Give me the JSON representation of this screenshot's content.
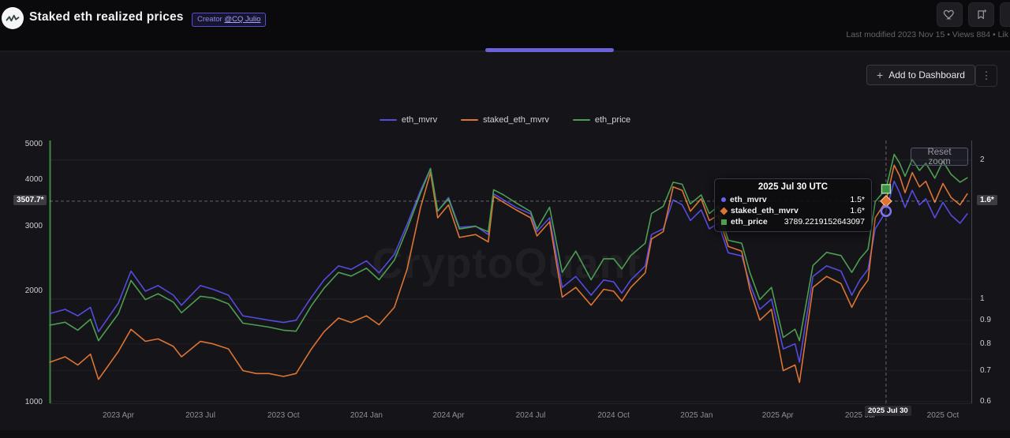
{
  "header": {
    "title": "Staked eth realized prices",
    "creator_badge": {
      "prefix": "Creator",
      "handle": "@CQ Julio"
    },
    "meta": "Last modified 2023 Nov 15 • Views 884 • Lik",
    "colors": {
      "badge_border": "#564fcf",
      "badge_text": "#8d88e8"
    }
  },
  "toolbar": {
    "add_to_dashboard": "Add to Dashboard",
    "kebab": "⋮",
    "plus": "+"
  },
  "legend": [
    {
      "label": "eth_mvrv",
      "color": "#554bdf"
    },
    {
      "label": "staked_eth_mvrv",
      "color": "#dd7433"
    },
    {
      "label": "eth_price",
      "color": "#4d9e51"
    }
  ],
  "watermark": "CryptoQuant",
  "reset_zoom": "Reset zoom",
  "tooltip": {
    "title": "2025 Jul 30 UTC",
    "rows": [
      {
        "label": "eth_mvrv",
        "value": "1.5*",
        "color": "#6a61f0",
        "shape": "circle"
      },
      {
        "label": "staked_eth_mvrv",
        "value": "1.6*",
        "color": "#dd7433",
        "shape": "diamond"
      },
      {
        "label": "eth_price",
        "value": "3789.2219152643097",
        "color": "#4d9e51",
        "shape": "square"
      }
    ]
  },
  "crosshair": {
    "x_label": "2025 Jul 30",
    "left_label": "3507.7*",
    "right_label": "1.6*"
  },
  "axes": {
    "left_ticks": [
      {
        "label": "5000",
        "value": 5000
      },
      {
        "label": "4000",
        "value": 4000
      },
      {
        "label": "3000",
        "value": 3000
      },
      {
        "label": "2000",
        "value": 2000
      },
      {
        "label": "1000",
        "value": 1000
      }
    ],
    "right_ticks": [
      {
        "label": "2",
        "value": 2
      },
      {
        "label": "1",
        "value": 1
      },
      {
        "label": "0.9",
        "value": 0.9
      },
      {
        "label": "0.8",
        "value": 0.8
      },
      {
        "label": "0.7",
        "value": 0.7
      },
      {
        "label": "0.6",
        "value": 0.6
      }
    ],
    "x_ticks": [
      {
        "label": "2023 Apr",
        "date": "2023-04-01"
      },
      {
        "label": "2023 Jul",
        "date": "2023-07-01"
      },
      {
        "label": "2023 Oct",
        "date": "2023-10-01"
      },
      {
        "label": "2024 Jan",
        "date": "2024-01-01"
      },
      {
        "label": "2024 Apr",
        "date": "2024-04-01"
      },
      {
        "label": "2024 Jul",
        "date": "2024-07-01"
      },
      {
        "label": "2024 Oct",
        "date": "2024-10-01"
      },
      {
        "label": "2025 Jan",
        "date": "2025-01-01"
      },
      {
        "label": "2025 Apr",
        "date": "2025-04-01"
      },
      {
        "label": "2025 Jul",
        "date": "2025-07-01"
      },
      {
        "label": "2025 Oct",
        "date": "2025-10-01"
      }
    ]
  },
  "chart_data": {
    "type": "line",
    "title": "Staked eth realized prices",
    "left_axis": {
      "scale": "log",
      "units": "USD",
      "series": "eth_price",
      "range": [
        1000,
        5000
      ]
    },
    "right_axis": {
      "scale": "log",
      "units": "ratio",
      "series": "eth_mvrv / staked_eth_mvrv",
      "range": [
        0.6,
        2.2
      ]
    },
    "legend_position": "top-center",
    "dates": [
      "2023-01-15",
      "2023-02-01",
      "2023-02-15",
      "2023-03-01",
      "2023-03-10",
      "2023-04-01",
      "2023-04-15",
      "2023-05-01",
      "2023-05-15",
      "2023-06-01",
      "2023-06-10",
      "2023-07-01",
      "2023-07-15",
      "2023-08-01",
      "2023-08-17",
      "2023-09-01",
      "2023-09-15",
      "2023-10-01",
      "2023-10-15",
      "2023-11-01",
      "2023-11-15",
      "2023-12-01",
      "2023-12-15",
      "2024-01-01",
      "2024-01-15",
      "2024-02-01",
      "2024-02-15",
      "2024-03-01",
      "2024-03-12",
      "2024-03-20",
      "2024-04-01",
      "2024-04-13",
      "2024-05-01",
      "2024-05-15",
      "2024-05-21",
      "2024-06-01",
      "2024-06-15",
      "2024-07-01",
      "2024-07-08",
      "2024-07-22",
      "2024-08-05",
      "2024-08-20",
      "2024-09-06",
      "2024-09-20",
      "2024-10-01",
      "2024-10-10",
      "2024-10-20",
      "2024-11-05",
      "2024-11-12",
      "2024-11-25",
      "2024-12-06",
      "2024-12-16",
      "2024-12-25",
      "2025-01-06",
      "2025-01-15",
      "2025-01-25",
      "2025-02-05",
      "2025-02-20",
      "2025-03-01",
      "2025-03-12",
      "2025-03-25",
      "2025-04-07",
      "2025-04-20",
      "2025-04-25",
      "2025-05-10",
      "2025-05-25",
      "2025-06-10",
      "2025-06-22",
      "2025-07-01",
      "2025-07-10",
      "2025-07-18",
      "2025-07-30",
      "2025-08-08",
      "2025-08-14",
      "2025-08-20",
      "2025-08-28",
      "2025-09-05",
      "2025-09-12",
      "2025-09-22",
      "2025-10-01",
      "2025-10-10",
      "2025-10-20",
      "2025-10-28"
    ],
    "series": [
      {
        "name": "eth_mvrv",
        "axis": "right",
        "color": "#554bdf",
        "values": [
          0.93,
          0.95,
          0.92,
          0.96,
          0.85,
          0.98,
          1.15,
          1.04,
          1.07,
          1.02,
          0.97,
          1.07,
          1.05,
          1.02,
          0.92,
          0.91,
          0.9,
          0.89,
          0.9,
          1.01,
          1.1,
          1.18,
          1.16,
          1.21,
          1.14,
          1.25,
          1.45,
          1.72,
          1.92,
          1.55,
          1.66,
          1.43,
          1.44,
          1.38,
          1.69,
          1.64,
          1.58,
          1.53,
          1.4,
          1.5,
          1.06,
          1.12,
          1.02,
          1.1,
          1.09,
          1.03,
          1.1,
          1.18,
          1.38,
          1.42,
          1.64,
          1.6,
          1.48,
          1.56,
          1.42,
          1.46,
          1.26,
          1.24,
          1.08,
          0.95,
          1.0,
          0.78,
          0.8,
          0.73,
          1.12,
          1.18,
          1.15,
          1.02,
          1.1,
          1.16,
          1.42,
          1.55,
          1.8,
          1.7,
          1.58,
          1.72,
          1.6,
          1.65,
          1.5,
          1.62,
          1.52,
          1.46,
          1.53
        ]
      },
      {
        "name": "staked_eth_mvrv",
        "axis": "right",
        "color": "#dd7433",
        "values": [
          0.73,
          0.75,
          0.72,
          0.76,
          0.67,
          0.77,
          0.86,
          0.81,
          0.82,
          0.79,
          0.75,
          0.81,
          0.8,
          0.78,
          0.7,
          0.69,
          0.69,
          0.68,
          0.69,
          0.78,
          0.85,
          0.91,
          0.89,
          0.92,
          0.88,
          0.96,
          1.16,
          1.58,
          1.88,
          1.5,
          1.6,
          1.36,
          1.38,
          1.33,
          1.67,
          1.62,
          1.56,
          1.5,
          1.37,
          1.47,
          1.01,
          1.06,
          0.97,
          1.05,
          1.04,
          0.99,
          1.06,
          1.14,
          1.35,
          1.4,
          1.75,
          1.72,
          1.55,
          1.65,
          1.48,
          1.52,
          1.3,
          1.27,
          1.05,
          0.9,
          0.95,
          0.7,
          0.72,
          0.66,
          1.06,
          1.12,
          1.08,
          0.96,
          1.04,
          1.1,
          1.5,
          1.63,
          1.95,
          1.85,
          1.7,
          1.88,
          1.75,
          1.8,
          1.62,
          1.78,
          1.66,
          1.6,
          1.69
        ]
      },
      {
        "name": "eth_price",
        "axis": "left",
        "color": "#4d9e51",
        "values": [
          1620,
          1650,
          1570,
          1680,
          1470,
          1740,
          2140,
          1900,
          1970,
          1870,
          1750,
          1940,
          1920,
          1850,
          1640,
          1620,
          1600,
          1570,
          1560,
          1830,
          2040,
          2250,
          2200,
          2310,
          2150,
          2430,
          2950,
          3690,
          4300,
          3300,
          3560,
          2950,
          3000,
          2900,
          3770,
          3650,
          3470,
          3290,
          2950,
          3380,
          2250,
          2570,
          2150,
          2450,
          2450,
          2300,
          2500,
          2700,
          3250,
          3400,
          3950,
          3900,
          3450,
          3650,
          3250,
          3400,
          2750,
          2700,
          2250,
          1900,
          2050,
          1500,
          1580,
          1470,
          2350,
          2550,
          2500,
          2250,
          2450,
          2600,
          3500,
          3789.2219152643097,
          4700,
          4450,
          4100,
          4550,
          4250,
          4450,
          4050,
          4500,
          4150,
          3950,
          4060
        ]
      }
    ],
    "highlight": {
      "date": "2025-07-30",
      "eth_mvrv": 1.55,
      "staked_eth_mvrv": 1.63,
      "eth_price": 3789.2219152643097
    }
  }
}
